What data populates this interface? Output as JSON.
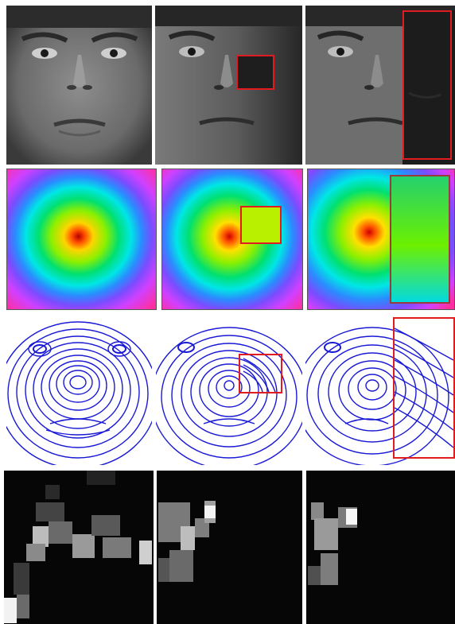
{
  "figure": {
    "rows": [
      {
        "name": "face-photos",
        "panels": [
          "original",
          "occluded-small",
          "occluded-large"
        ]
      },
      {
        "name": "distance-maps",
        "panels": [
          "original",
          "occluded-small",
          "occluded-large"
        ]
      },
      {
        "name": "contour-maps",
        "panels": [
          "original",
          "occluded-small",
          "occluded-large"
        ]
      },
      {
        "name": "block-features",
        "panels": [
          "original",
          "occluded-small",
          "occluded-large"
        ]
      }
    ],
    "colors": {
      "occlusion_box": "#e11b22",
      "contour_lines": "#1a1ad6",
      "background": "#ffffff"
    }
  }
}
